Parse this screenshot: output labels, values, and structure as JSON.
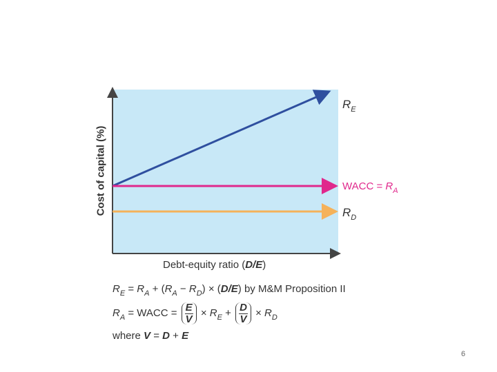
{
  "y_axis_label": "Cost of capital (%)",
  "x_axis_label": [
    {
      "text": "Debt-equity ratio ("
    },
    {
      "b": "D/E"
    },
    {
      "text": ")"
    }
  ],
  "line_labels": [
    [
      {
        "i": "R"
      },
      {
        "sub": "E"
      }
    ],
    [
      {
        "text": "WACC = "
      },
      {
        "i": "R"
      },
      {
        "sub": "A"
      }
    ],
    [
      {
        "i": "R"
      },
      {
        "sub": "D"
      }
    ]
  ],
  "formulas": [
    [
      {
        "i": "R"
      },
      {
        "sub": "E"
      },
      {
        "text": " = "
      },
      {
        "i": "R"
      },
      {
        "sub": "A"
      },
      {
        "text": " + ("
      },
      {
        "i": "R"
      },
      {
        "sub": "A"
      },
      {
        "text": " − "
      },
      {
        "i": "R"
      },
      {
        "sub": "D"
      },
      {
        "text": ") × ("
      },
      {
        "b": "D/E"
      },
      {
        "text": ") by M&M Proposition II"
      }
    ],
    [
      {
        "i": "R"
      },
      {
        "sub": "A"
      },
      {
        "text": " = WACC = "
      },
      {
        "frac": [
          "E",
          "V"
        ]
      },
      {
        "text": " × "
      },
      {
        "i": "R"
      },
      {
        "sub": "E"
      },
      {
        "text": " + "
      },
      {
        "frac": [
          "D",
          "V"
        ]
      },
      {
        "text": " × "
      },
      {
        "i": "R"
      },
      {
        "sub": "D"
      }
    ],
    [
      {
        "text": "where "
      },
      {
        "b": "V"
      },
      {
        "text": " = "
      },
      {
        "b": "D"
      },
      {
        "text": " + "
      },
      {
        "b": "E"
      }
    ]
  ],
  "page_number": "6"
}
